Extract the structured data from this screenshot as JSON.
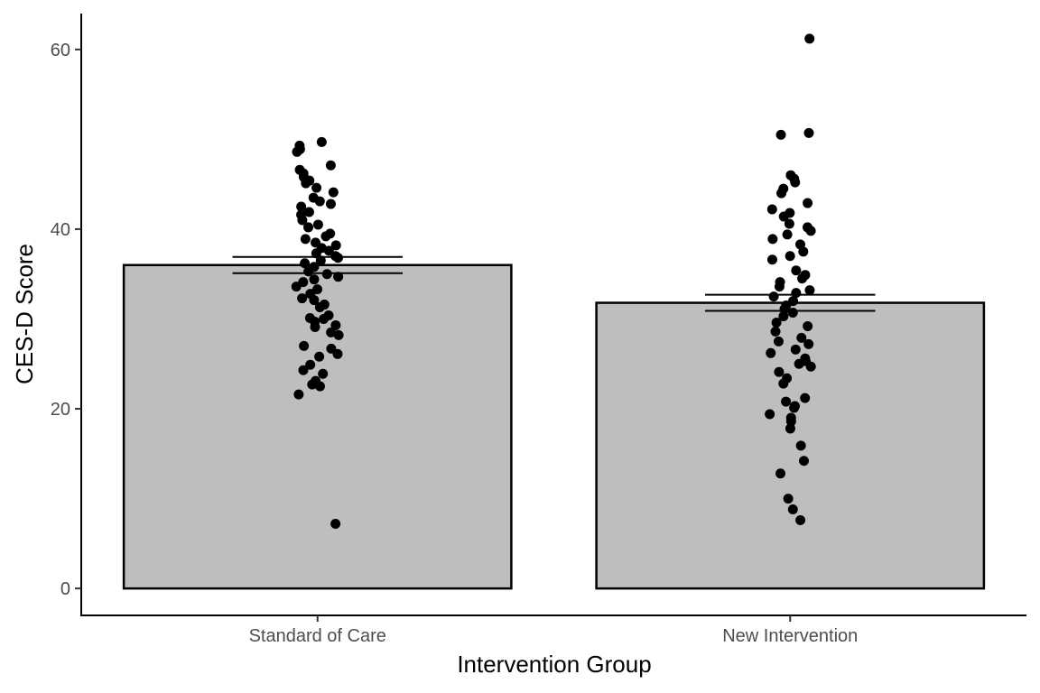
{
  "chart_data": {
    "type": "bar",
    "title": "",
    "xlabel": "Intervention Group",
    "ylabel": "CES-D Score",
    "categories": [
      "Standard of Care",
      "New Intervention"
    ],
    "values": [
      36.0,
      31.8
    ],
    "error_bars": [
      {
        "low": 35.1,
        "high": 36.9
      },
      {
        "low": 30.9,
        "high": 32.7
      }
    ],
    "ylim": [
      -3,
      64
    ],
    "yticks": [
      0,
      20,
      40,
      60
    ],
    "grid": false,
    "legend": "none",
    "bar_fill": "#bebebe",
    "point_color": "#000000",
    "points": [
      [
        7.2,
        21.6,
        22.5,
        22.7,
        23.1,
        23.9,
        24.3,
        24.9,
        25.8,
        26.1,
        26.7,
        27.0,
        28.2,
        28.5,
        29.1,
        29.3,
        29.7,
        30.0,
        30.1,
        30.4,
        31.3,
        31.6,
        32.1,
        32.3,
        32.8,
        33.3,
        33.6,
        34.1,
        34.4,
        34.7,
        35.0,
        35.3,
        35.8,
        36.2,
        36.5,
        36.8,
        37.0,
        37.3,
        37.6,
        37.9,
        38.2,
        38.5,
        38.9,
        39.2,
        39.5,
        40.2,
        40.5,
        41.0,
        41.6,
        41.9,
        42.5,
        42.8,
        43.1,
        43.5,
        44.1,
        44.6,
        45.1,
        45.4,
        45.8,
        46.2,
        46.6,
        47.1,
        48.6,
        48.9,
        49.3,
        49.7
      ],
      [
        7.6,
        8.8,
        10.0,
        12.8,
        14.2,
        15.9,
        17.8,
        18.6,
        19.0,
        19.4,
        20.1,
        20.3,
        20.8,
        21.2,
        22.8,
        23.4,
        24.1,
        24.7,
        25.0,
        25.3,
        25.6,
        26.2,
        26.6,
        27.2,
        27.5,
        27.9,
        28.6,
        29.2,
        29.6,
        30.3,
        30.7,
        31.1,
        31.5,
        32.0,
        32.5,
        32.9,
        33.2,
        33.6,
        34.1,
        34.5,
        34.9,
        35.4,
        36.6,
        37.0,
        37.5,
        38.3,
        38.9,
        39.4,
        39.8,
        40.2,
        40.6,
        41.4,
        41.8,
        42.2,
        42.9,
        44.0,
        44.5,
        45.2,
        45.6,
        46.0,
        50.5,
        50.7,
        61.2
      ]
    ]
  }
}
